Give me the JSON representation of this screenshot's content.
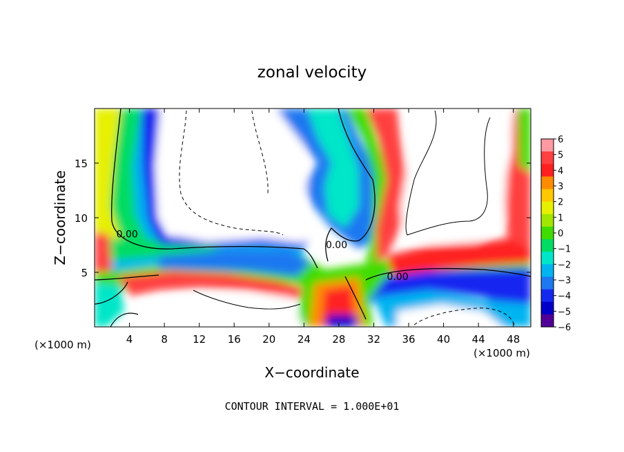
{
  "chart_data": {
    "type": "heatmap",
    "title": "zonal velocity",
    "xlabel": "X−coordinate",
    "ylabel": "Z−coordinate",
    "x_unit_left": "(×1000 m)",
    "x_unit_right": "(×1000 m)",
    "footer": "CONTOUR INTERVAL = 1.000E+01",
    "xlim": [
      0,
      50
    ],
    "ylim": [
      0,
      20
    ],
    "x_ticks": [
      {
        "value": 4,
        "label": "4"
      },
      {
        "value": 8,
        "label": "8"
      },
      {
        "value": 12,
        "label": "12"
      },
      {
        "value": 16,
        "label": "16"
      },
      {
        "value": 20,
        "label": "20"
      },
      {
        "value": 24,
        "label": "24"
      },
      {
        "value": 28,
        "label": "28"
      },
      {
        "value": 32,
        "label": "32"
      },
      {
        "value": 36,
        "label": "36"
      },
      {
        "value": 40,
        "label": "40"
      },
      {
        "value": 44,
        "label": "44"
      },
      {
        "value": 48,
        "label": "48"
      }
    ],
    "y_ticks": [
      {
        "value": 5,
        "label": "5"
      },
      {
        "value": 10,
        "label": "10"
      },
      {
        "value": 15,
        "label": "15"
      }
    ],
    "colorbar": {
      "range": [
        -6,
        6
      ],
      "labels": [
        "6",
        "5",
        "4",
        "3",
        "2",
        "1",
        "0",
        "−1",
        "−2",
        "−3",
        "−4",
        "−5",
        "−6"
      ],
      "colors": [
        "#ff9aa2",
        "#ff4040",
        "#ff2020",
        "#ff8c00",
        "#ffc800",
        "#e6f000",
        "#a0e600",
        "#40dc00",
        "#00dc64",
        "#00e6c8",
        "#00b4f0",
        "#1e78f0",
        "#1428f0",
        "#0000c8",
        "#500096"
      ]
    },
    "contour_labels": [
      {
        "text": "0.00",
        "x": 2.5,
        "z": 8.2
      },
      {
        "text": "0.00",
        "x": 26.5,
        "z": 7.2
      },
      {
        "text": "0.00",
        "x": 33.5,
        "z": 4.3
      }
    ]
  }
}
